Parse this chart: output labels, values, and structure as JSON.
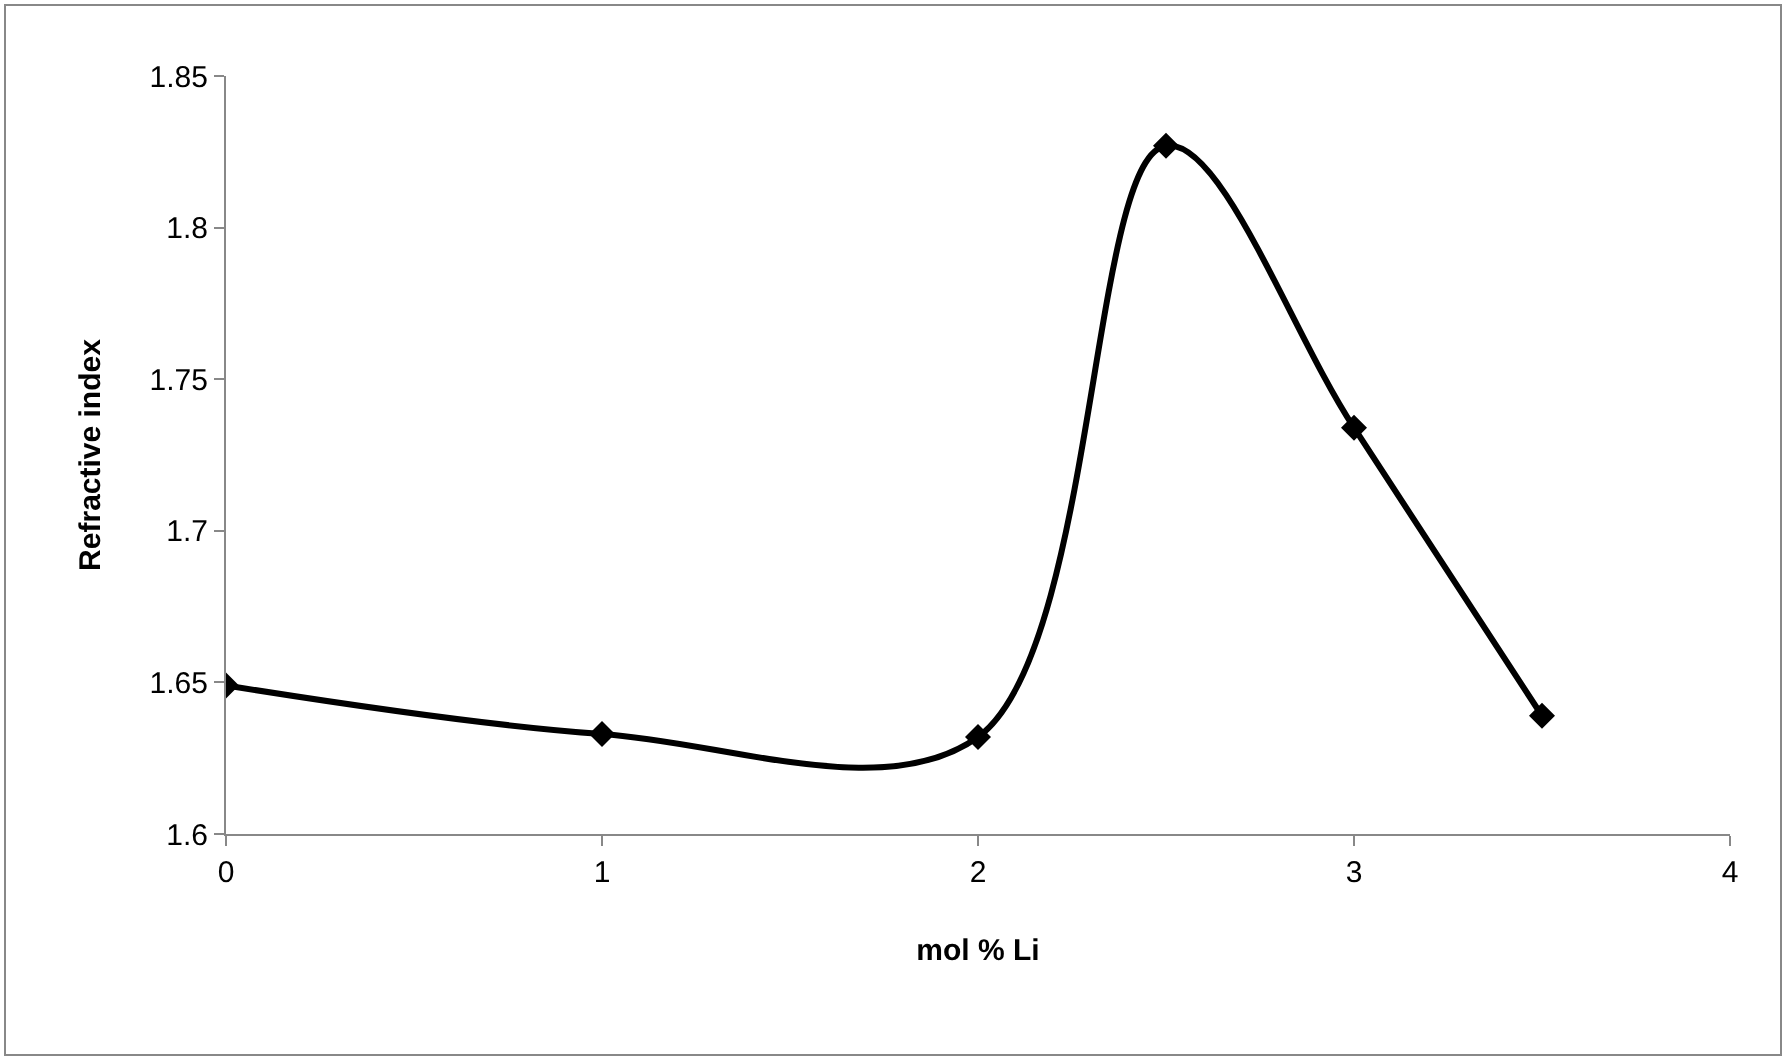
{
  "chart_data": {
    "type": "line",
    "xlabel": "mol % Li",
    "ylabel": "Refractive index",
    "x": [
      0,
      1,
      2,
      2.5,
      3,
      3.5
    ],
    "series": [
      {
        "color": "#000000",
        "values": [
          1.649,
          1.633,
          1.632,
          1.827,
          1.734,
          1.639
        ]
      }
    ],
    "xlim": [
      0,
      4
    ],
    "xticks": [
      0,
      1,
      2,
      3,
      4
    ],
    "ylim": [
      1.6,
      1.85
    ],
    "yticks": [
      {
        "value": 1.6,
        "label": "1.6"
      },
      1.65,
      {
        "value": 1.7,
        "label": "1.7"
      },
      1.75,
      {
        "value": 1.8,
        "label": "1.8"
      },
      1.85
    ],
    "grid": false,
    "marker": "diamond",
    "line_style": "solid"
  }
}
